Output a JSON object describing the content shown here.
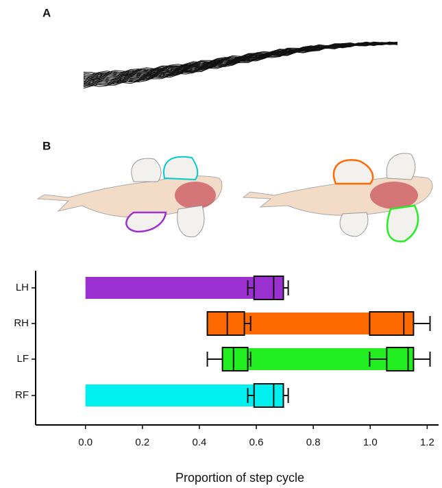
{
  "panel_labels": [
    "A",
    "B"
  ],
  "chart_data": {
    "type": "gantt",
    "xlabel": "Proportion of step cycle",
    "categories": [
      "LH",
      "RH",
      "LF",
      "RF"
    ],
    "xlim": [
      -0.175,
      1.24
    ],
    "xticks": [
      {
        "value": 0,
        "label": "0.0"
      },
      0.2,
      0.4,
      0.6,
      0.8,
      {
        "value": 1,
        "label": "1.0"
      },
      1.2
    ],
    "bars": [
      {
        "start": 0,
        "end": 0.695,
        "color": "#9b30d0",
        "boxes": [
          [
            0.57,
            0.592,
            0.661,
            0.695,
            0.712
          ]
        ]
      },
      {
        "start": 0.428,
        "end": 1.152,
        "color": "#ff6a00",
        "boxes": [
          [
            0.428,
            0.428,
            0.498,
            0.558,
            0.58
          ],
          [
            0.998,
            0.998,
            1.118,
            1.152,
            1.21
          ]
        ]
      },
      {
        "start": 0.481,
        "end": 1.152,
        "color": "#22ee22",
        "boxes": [
          [
            0.428,
            0.481,
            0.52,
            0.57,
            0.58
          ],
          [
            0.998,
            1.058,
            1.133,
            1.152,
            1.21
          ]
        ]
      },
      {
        "start": 0,
        "end": 0.695,
        "color": "#00f0f0",
        "boxes": [
          [
            0.57,
            0.592,
            0.661,
            0.695,
            0.712
          ]
        ]
      }
    ]
  }
}
